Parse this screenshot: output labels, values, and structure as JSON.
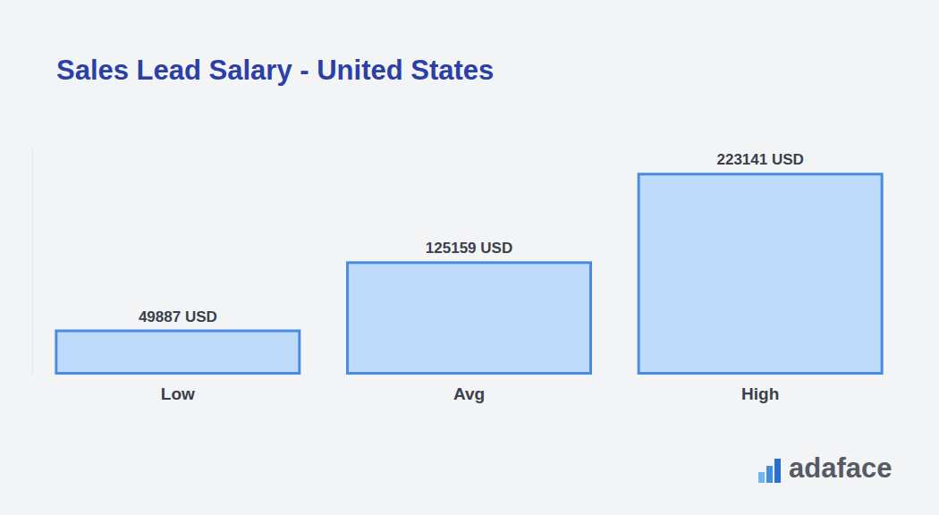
{
  "chart_data": {
    "type": "bar",
    "title": "Sales Lead Salary - United States",
    "categories": [
      "Low",
      "Avg",
      "High"
    ],
    "values": [
      49887,
      125159,
      223141
    ],
    "value_labels": [
      "49887 USD",
      "125159 USD",
      "223141 USD"
    ],
    "color": "#bfdbfc",
    "ylim": [
      0,
      250000
    ],
    "data_labels": true,
    "tick_labels": "x",
    "grid": false,
    "annotation": "adaface"
  }
}
